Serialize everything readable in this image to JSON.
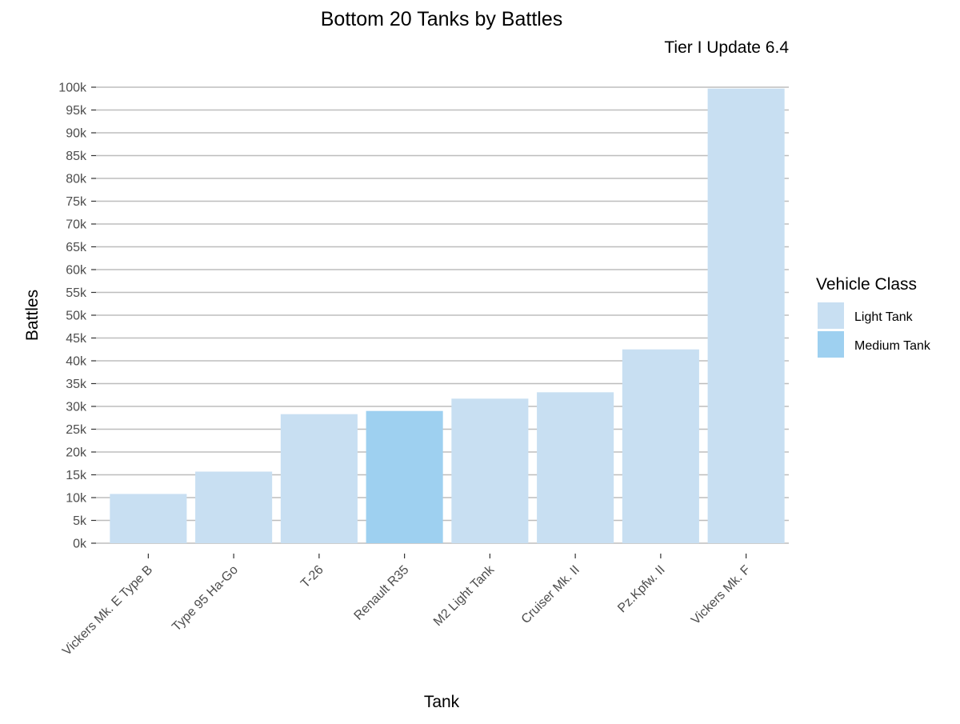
{
  "chart_data": {
    "type": "bar",
    "title": "Bottom 20 Tanks by Battles",
    "subtitle": "Tier I Update 6.4",
    "xlabel": "Tank",
    "ylabel": "Battles",
    "ylim": [
      0,
      100000
    ],
    "ytick_step": 5000,
    "yticks": [
      "0k",
      "5k",
      "10k",
      "15k",
      "20k",
      "25k",
      "30k",
      "35k",
      "40k",
      "45k",
      "50k",
      "55k",
      "60k",
      "65k",
      "70k",
      "75k",
      "80k",
      "85k",
      "90k",
      "95k",
      "100k"
    ],
    "grid": true,
    "categories": [
      "Vickers Mk. E Type B",
      "Type 95 Ha-Go",
      "T-26",
      "Renault R35",
      "M2 Light Tank",
      "Cruiser Mk. II",
      "Pz.Kpfw. II",
      "Vickers Mk. F"
    ],
    "values": [
      10800,
      15700,
      28300,
      29000,
      31700,
      33100,
      42500,
      99700
    ],
    "classes": [
      "Light Tank",
      "Light Tank",
      "Light Tank",
      "Medium Tank",
      "Light Tank",
      "Light Tank",
      "Light Tank",
      "Light Tank"
    ],
    "legend": {
      "title": "Vehicle Class",
      "position": "right",
      "entries": [
        {
          "name": "Light Tank",
          "color": "#c8dff2"
        },
        {
          "name": "Medium Tank",
          "color": "#9ed0f0"
        }
      ]
    }
  }
}
